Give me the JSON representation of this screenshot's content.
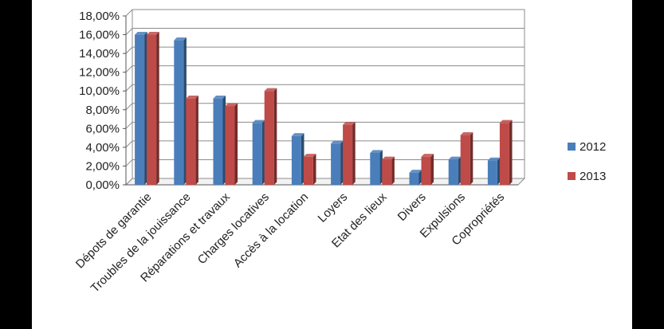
{
  "chart_data": {
    "type": "bar",
    "title": "",
    "xlabel": "",
    "ylabel": "",
    "ylim": [
      0,
      18
    ],
    "y_tick_step": 2,
    "y_tick_format": "percent_comma_2dp",
    "grid": true,
    "legend_position": "right",
    "categories": [
      "Dépots de garantie",
      "Troubles de la jouissance",
      "Réparations et travaux",
      "Charges locatives",
      "Accès à la location",
      "Loyers",
      "Etat des lieux",
      "Divers",
      "Expulsions",
      "Copropriétés"
    ],
    "series": [
      {
        "name": "2012",
        "color": "#4a7ebb",
        "values": [
          16.0,
          15.4,
          9.2,
          6.6,
          5.2,
          4.4,
          3.4,
          1.3,
          2.7,
          2.6
        ]
      },
      {
        "name": "2013",
        "color": "#be4b48",
        "values": [
          16.0,
          9.2,
          8.4,
          10.0,
          3.0,
          6.4,
          2.7,
          3.0,
          5.3,
          6.6
        ]
      }
    ]
  }
}
